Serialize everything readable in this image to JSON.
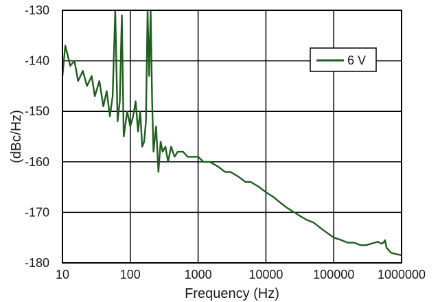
{
  "chart_data": {
    "type": "line",
    "title": "",
    "xlabel": "Frequency (Hz)",
    "ylabel": "(dBc/Hz)",
    "x_scale": "log",
    "xlim": [
      10,
      1000000
    ],
    "ylim": [
      -180,
      -130
    ],
    "grid": true,
    "legend_position": "top-right",
    "x_ticks": [
      10,
      100,
      1000,
      10000,
      100000,
      1000000
    ],
    "x_tick_labels": [
      "10",
      "100",
      "1000",
      "10000",
      "100000",
      "1000000"
    ],
    "y_ticks": [
      -130,
      -140,
      -150,
      -160,
      -170,
      -180
    ],
    "y_tick_labels": [
      "-130",
      "-140",
      "-150",
      "-160",
      "-170",
      "-180"
    ],
    "series": [
      {
        "name": "6 V",
        "color": "#1e5e1e",
        "x": [
          10,
          11,
          12,
          13,
          15,
          17,
          20,
          23,
          27,
          30,
          35,
          40,
          45,
          50,
          55,
          60,
          65,
          70,
          75,
          80,
          90,
          100,
          110,
          120,
          130,
          140,
          150,
          160,
          170,
          180,
          190,
          200,
          210,
          220,
          240,
          260,
          280,
          300,
          330,
          360,
          400,
          450,
          500,
          600,
          700,
          800,
          1000,
          1200,
          1500,
          2000,
          2500,
          3000,
          4000,
          5000,
          6000,
          8000,
          10000,
          13000,
          16000,
          20000,
          30000,
          40000,
          50000,
          70000,
          100000,
          130000,
          160000,
          200000,
          250000,
          300000,
          400000,
          450000,
          500000,
          540000,
          570000,
          600000,
          650000,
          700000,
          800000,
          1000000
        ],
        "values": [
          -143,
          -137,
          -139,
          -141,
          -140,
          -144,
          -142,
          -145,
          -143,
          -147,
          -144,
          -149,
          -146,
          -151,
          -147,
          -130,
          -152,
          -148,
          -131,
          -155,
          -150,
          -153,
          -151,
          -148,
          -154,
          -150,
          -157,
          -156,
          -152,
          -130,
          -143,
          -130,
          -148,
          -158,
          -153,
          -162,
          -156,
          -158,
          -157,
          -160,
          -157,
          -159,
          -158,
          -158,
          -159,
          -159,
          -159,
          -160,
          -160,
          -161,
          -162,
          -162,
          -163,
          -164,
          -164,
          -165,
          -166,
          -167,
          -168,
          -169,
          -170.5,
          -171.5,
          -172,
          -173.5,
          -175,
          -175.5,
          -176,
          -176,
          -176.5,
          -176.5,
          -176,
          -175.8,
          -176.2,
          -176,
          -175.5,
          -177,
          -177.5,
          -178,
          -178.2,
          -178.5
        ]
      }
    ]
  }
}
